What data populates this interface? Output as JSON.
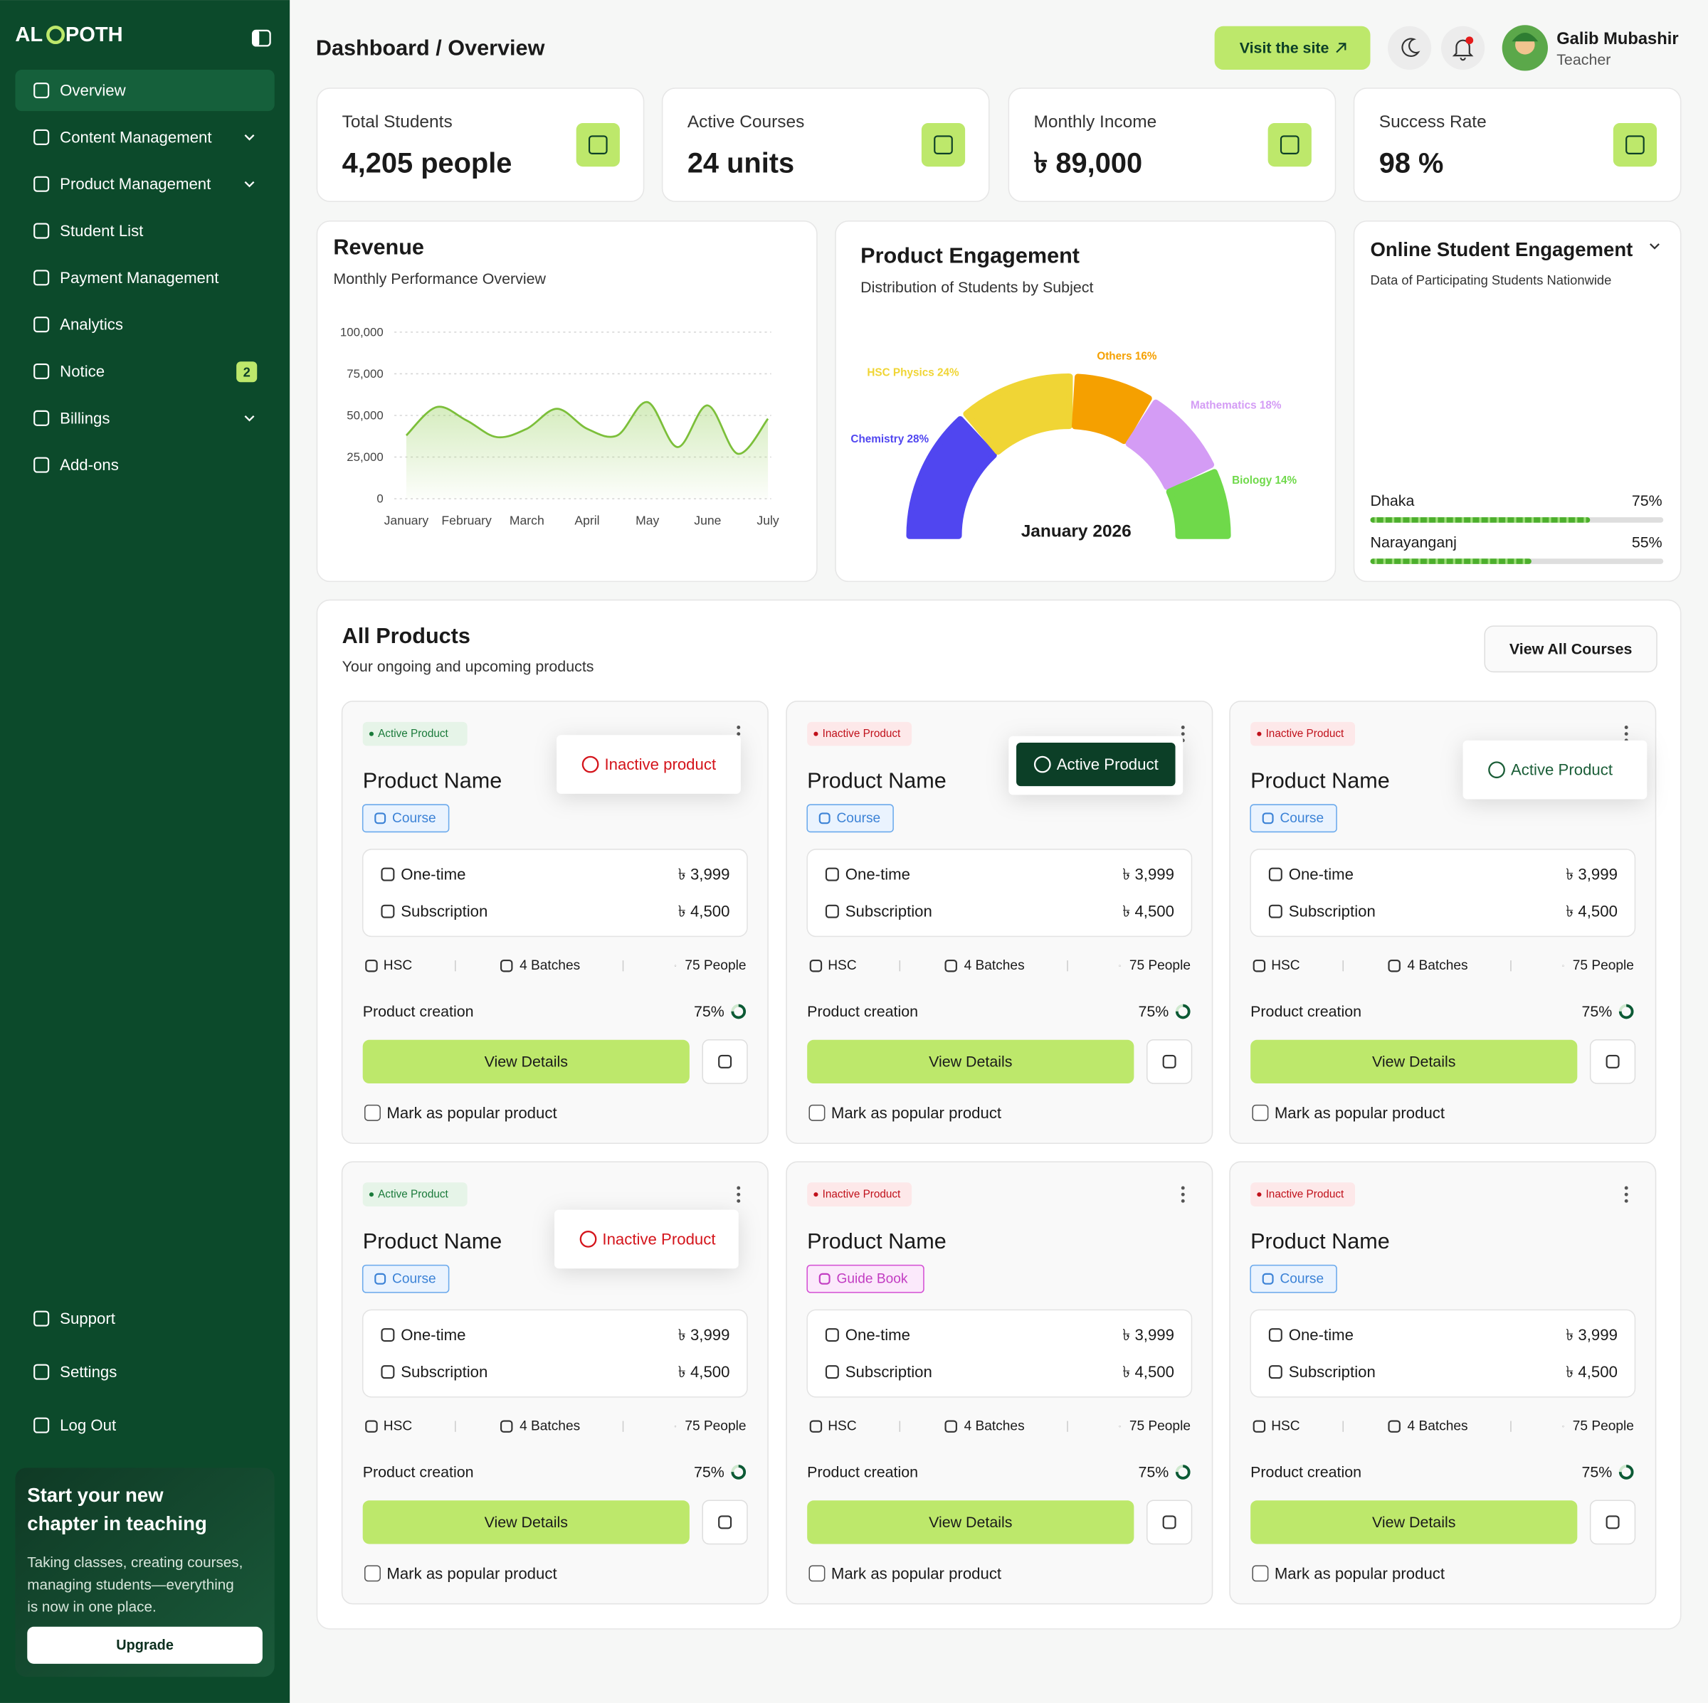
{
  "sidebar": {
    "logo_start": "AL",
    "logo_end": "POTH",
    "nav": [
      "Overview",
      "Content Management",
      "Product Management",
      "Student List",
      "Payment Management",
      "Analytics",
      "Notice",
      "Billings",
      "Add-ons"
    ],
    "notice_badge": "2",
    "footer_nav": [
      "Support",
      "Settings",
      "Log Out"
    ],
    "promo": {
      "title_lines": [
        "Start your new",
        "chapter in teaching"
      ],
      "text_lines": [
        "Taking classes, creating courses,",
        "managing students—everything",
        "is now in one place."
      ],
      "button": "Upgrade"
    }
  },
  "header": {
    "breadcrumb": "Dashboard / Overview",
    "visit_button": "Visit the site",
    "user_name": "Galib Mubashir",
    "user_role": "Teacher"
  },
  "stats": [
    {
      "label": "Total Students",
      "value": "4,205 people"
    },
    {
      "label": "Active Courses",
      "value": "24 units"
    },
    {
      "label": "Monthly Income",
      "value": "৳ 89,000"
    },
    {
      "label": "Success Rate",
      "value": "98 %"
    }
  ],
  "chart_data": [
    {
      "type": "line",
      "title": "Revenue",
      "subtitle": "Monthly Performance Overview",
      "categories": [
        "January",
        null,
        "February",
        null,
        "March",
        null,
        "April",
        null,
        "May",
        null,
        "June",
        null,
        "July"
      ],
      "values": [
        38000,
        55000,
        47000,
        37000,
        42000,
        54000,
        42000,
        38000,
        58000,
        31000,
        56000,
        27000,
        48000
      ],
      "color": "#7cbf3a",
      "ylim": [
        0,
        100000
      ],
      "yticks": [
        0,
        {
          "value": 25000,
          "label": "25,000"
        },
        {
          "value": 50000,
          "label": "50,000"
        },
        {
          "value": 75000,
          "label": "75,000"
        },
        {
          "value": 100000,
          "label": "100,000"
        }
      ],
      "grid": true
    },
    {
      "type": "pie",
      "title": "Product Engagement",
      "subtitle": "Distribution of Students by Subject",
      "center_label": "January 2026",
      "categories": [
        "Chemistry",
        "HSC Physics",
        "Others",
        "Mathematics",
        "Biology"
      ],
      "values": [
        28,
        24,
        16,
        18,
        14
      ],
      "value_labels": [
        "28%",
        "24%",
        "16%",
        "18%",
        "14%"
      ],
      "colors": [
        "#5046f0",
        "#f0d535",
        "#f5a000",
        "#d49cf5",
        "#6fd94a"
      ]
    }
  ],
  "online_engagement": {
    "title": "Online Student Engagement",
    "subtitle": "Data of Participating Students Nationwide",
    "regions": [
      {
        "name": "Dhaka",
        "value": 75,
        "value_label": "75%"
      },
      {
        "name": "Narayanganj",
        "value": 55,
        "value_label": "55%"
      }
    ]
  },
  "products": {
    "title": "All Products",
    "subtitle": "Your ongoing and upcoming products",
    "button": "View All Courses",
    "items": [
      {
        "status": "Active Product",
        "menu_option": "Inactive product",
        "name": "Product Name",
        "tag": "Course",
        "pricing": [
          {
            "label": "One-time",
            "price": "৳ 3,999"
          },
          {
            "label": "Subscription",
            "price": "৳ 4,500"
          }
        ],
        "level": "HSC",
        "batches": "4 Batches",
        "people": "75 People",
        "progress_label": "Product creation",
        "progress": 75,
        "progress_value_label": "75%",
        "button": "View Details",
        "checkbox": "Mark as popular product"
      },
      {
        "status": "Inactive Product",
        "menu_option": "Active Product",
        "name": "Product Name",
        "tag": "Course",
        "pricing": [
          {
            "label": "One-time",
            "price": "৳ 3,999"
          },
          {
            "label": "Subscription",
            "price": "৳ 4,500"
          }
        ],
        "level": "HSC",
        "batches": "4 Batches",
        "people": "75 People",
        "progress_label": "Product creation",
        "progress": 75,
        "progress_value_label": "75%",
        "button": "View Details",
        "checkbox": "Mark as popular product"
      },
      {
        "status": "Inactive Product",
        "menu_option": "Active Product",
        "name": "Product Name",
        "tag": "Course",
        "pricing": [
          {
            "label": "One-time",
            "price": "৳ 3,999"
          },
          {
            "label": "Subscription",
            "price": "৳ 4,500"
          }
        ],
        "level": "HSC",
        "batches": "4 Batches",
        "people": "75 People",
        "progress_label": "Product creation",
        "progress": 75,
        "progress_value_label": "75%",
        "button": "View Details",
        "checkbox": "Mark as popular product"
      },
      {
        "status": "Active Product",
        "menu_option": "Inactive Product",
        "name": "Product Name",
        "tag": "Course",
        "pricing": [
          {
            "label": "One-time",
            "price": "৳ 3,999"
          },
          {
            "label": "Subscription",
            "price": "৳ 4,500"
          }
        ],
        "level": "HSC",
        "batches": "4 Batches",
        "people": "75 People",
        "progress_label": "Product creation",
        "progress": 75,
        "progress_value_label": "75%",
        "button": "View Details",
        "checkbox": "Mark as popular product"
      },
      {
        "status": "Inactive Product",
        "name": "Product Name",
        "tag": "Guide Book",
        "pricing": [
          {
            "label": "One-time",
            "price": "৳ 3,999"
          },
          {
            "label": "Subscription",
            "price": "৳ 4,500"
          }
        ],
        "level": "HSC",
        "batches": "4 Batches",
        "people": "75 People",
        "progress_label": "Product creation",
        "progress": 75,
        "progress_value_label": "75%",
        "button": "View Details",
        "checkbox": "Mark as popular product"
      },
      {
        "status": "Inactive Product",
        "name": "Product Name",
        "tag": "Course",
        "pricing": [
          {
            "label": "One-time",
            "price": "৳ 3,999"
          },
          {
            "label": "Subscription",
            "price": "৳ 4,500"
          }
        ],
        "level": "HSC",
        "batches": "4 Batches",
        "people": "75 People",
        "progress_label": "Product creation",
        "progress": 75,
        "progress_value_label": "75%",
        "button": "View Details",
        "checkbox": "Mark as popular product"
      }
    ]
  }
}
